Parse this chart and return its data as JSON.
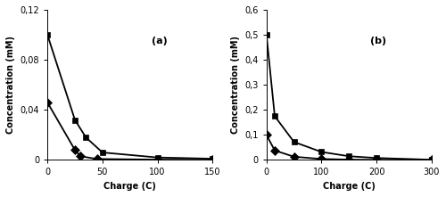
{
  "panel_a": {
    "label": "(a)",
    "xlim": [
      0,
      150
    ],
    "ylim": [
      0,
      0.12
    ],
    "xticks": [
      0,
      50,
      100,
      150
    ],
    "yticks": [
      0,
      0.04,
      0.08,
      0.12
    ],
    "ytick_labels": [
      "0",
      "0,04",
      "0,08",
      "0,12"
    ],
    "xlabel": "Charge (C)",
    "ylabel": "Concentration (mM)",
    "series_diamond": {
      "x": [
        0,
        25,
        30,
        45,
        100,
        150
      ],
      "y": [
        0.046,
        0.008,
        0.003,
        0.0008,
        0.0003,
        0.0001
      ]
    },
    "series_square": {
      "x": [
        0,
        25,
        35,
        50,
        100,
        150
      ],
      "y": [
        0.1,
        0.032,
        0.018,
        0.006,
        0.002,
        0.001
      ]
    }
  },
  "panel_b": {
    "label": "(b)",
    "xlim": [
      0,
      300
    ],
    "ylim": [
      0,
      0.6
    ],
    "xticks": [
      0,
      100,
      200,
      300
    ],
    "yticks": [
      0,
      0.1,
      0.2,
      0.3,
      0.4,
      0.5,
      0.6
    ],
    "ytick_labels": [
      "0",
      "0,1",
      "0,2",
      "0,3",
      "0,4",
      "0,5",
      "0,6"
    ],
    "xlabel": "Charge (C)",
    "ylabel": "Concentration (mM)",
    "series_diamond": {
      "x": [
        0,
        15,
        50,
        100,
        150,
        200,
        300
      ],
      "y": [
        0.1,
        0.038,
        0.013,
        0.004,
        0.0015,
        0.0007,
        0.0001
      ]
    },
    "series_square": {
      "x": [
        0,
        15,
        50,
        100,
        150,
        200,
        300
      ],
      "y": [
        0.5,
        0.175,
        0.072,
        0.032,
        0.015,
        0.008,
        0.001
      ]
    }
  },
  "background_color": "#ffffff",
  "line_color": "#000000",
  "marker_square": "s",
  "marker_diamond": "D",
  "marker_size_square": 5,
  "marker_size_diamond": 5,
  "line_width": 1.3,
  "font_size_label": 7,
  "font_size_axis": 7,
  "font_size_panel": 8
}
